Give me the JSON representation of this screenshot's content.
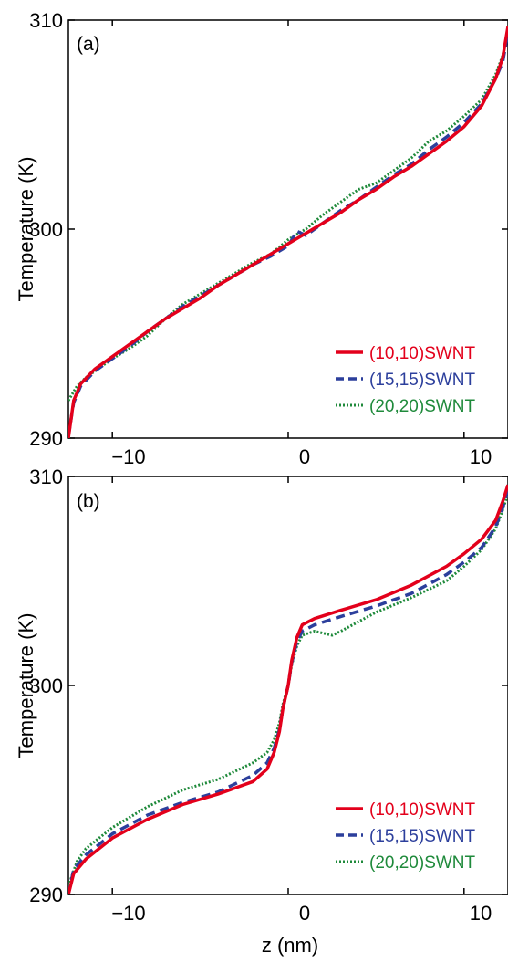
{
  "colors": {
    "series_10_10": "#e3001b",
    "series_15_15": "#2c3f9c",
    "series_20_20": "#1f8a3b",
    "axis": "#000000"
  },
  "chart_data": [
    {
      "type": "line",
      "panel_label": "(a)",
      "xlabel": "",
      "ylabel": "Temperature (K)",
      "xlim": [
        -12.5,
        12.5
      ],
      "ylim": [
        290,
        310
      ],
      "xticks": [
        "−10",
        "0",
        "10"
      ],
      "xtick_values": [
        -10,
        0,
        10
      ],
      "yticks": [
        "290",
        "300",
        "310"
      ],
      "ytick_values": [
        290,
        300,
        310
      ],
      "grid": false,
      "legend_position": "bottom-right",
      "series": [
        {
          "name": "(10,10)SWNT",
          "style": "solid",
          "color": "#e3001b",
          "points": [
            [
              -12.5,
              290.0
            ],
            [
              -12.2,
              291.8
            ],
            [
              -11.8,
              292.6
            ],
            [
              -11,
              293.3
            ],
            [
              -10,
              293.9
            ],
            [
              -9,
              294.5
            ],
            [
              -8,
              295.1
            ],
            [
              -7,
              295.7
            ],
            [
              -6,
              296.2
            ],
            [
              -5,
              296.7
            ],
            [
              -4,
              297.3
            ],
            [
              -3,
              297.8
            ],
            [
              -2,
              298.3
            ],
            [
              -1,
              298.8
            ],
            [
              0,
              299.3
            ],
            [
              1,
              299.8
            ],
            [
              2,
              300.3
            ],
            [
              3,
              300.8
            ],
            [
              4,
              301.4
            ],
            [
              5,
              301.9
            ],
            [
              6,
              302.5
            ],
            [
              7,
              303.0
            ],
            [
              8,
              303.6
            ],
            [
              9,
              304.2
            ],
            [
              10,
              304.9
            ],
            [
              11,
              305.9
            ],
            [
              11.8,
              307.2
            ],
            [
              12.2,
              308.2
            ],
            [
              12.5,
              309.7
            ]
          ]
        },
        {
          "name": "(15,15)SWNT",
          "style": "dashed",
          "color": "#2c3f9c",
          "points": [
            [
              -12.5,
              290.1
            ],
            [
              -12.2,
              291.7
            ],
            [
              -11.8,
              292.5
            ],
            [
              -11,
              293.2
            ],
            [
              -10,
              293.8
            ],
            [
              -9,
              294.4
            ],
            [
              -8,
              295.1
            ],
            [
              -7,
              295.7
            ],
            [
              -6,
              296.3
            ],
            [
              -5,
              296.8
            ],
            [
              -4,
              297.3
            ],
            [
              -3,
              297.8
            ],
            [
              -2,
              298.3
            ],
            [
              -1,
              298.7
            ],
            [
              0,
              299.2
            ],
            [
              0.5,
              299.9
            ],
            [
              1,
              299.7
            ],
            [
              2,
              300.3
            ],
            [
              3,
              300.9
            ],
            [
              4,
              301.4
            ],
            [
              5,
              302.0
            ],
            [
              6,
              302.6
            ],
            [
              7,
              303.1
            ],
            [
              8,
              303.8
            ],
            [
              9,
              304.4
            ],
            [
              10,
              305.1
            ],
            [
              11,
              306.0
            ],
            [
              11.8,
              307.2
            ],
            [
              12.2,
              308.0
            ],
            [
              12.5,
              309.4
            ]
          ]
        },
        {
          "name": "(20,20)SWNT",
          "style": "dotted",
          "color": "#1f8a3b",
          "points": [
            [
              -12.5,
              291.8
            ],
            [
              -12,
              292.5
            ],
            [
              -11.5,
              292.9
            ],
            [
              -11,
              293.2
            ],
            [
              -10,
              293.8
            ],
            [
              -9,
              294.3
            ],
            [
              -8,
              294.9
            ],
            [
              -7,
              295.7
            ],
            [
              -6,
              296.4
            ],
            [
              -5,
              296.9
            ],
            [
              -4,
              297.4
            ],
            [
              -3,
              297.9
            ],
            [
              -2,
              298.4
            ],
            [
              -1,
              298.8
            ],
            [
              0,
              299.5
            ],
            [
              1,
              300.0
            ],
            [
              2,
              300.7
            ],
            [
              3,
              301.3
            ],
            [
              4,
              301.9
            ],
            [
              5,
              302.2
            ],
            [
              6,
              302.8
            ],
            [
              7,
              303.4
            ],
            [
              8,
              304.2
            ],
            [
              9,
              304.7
            ],
            [
              10,
              305.4
            ],
            [
              11,
              306.2
            ],
            [
              11.8,
              307.4
            ],
            [
              12.2,
              308.3
            ],
            [
              12.5,
              309.5
            ]
          ]
        }
      ]
    },
    {
      "type": "line",
      "panel_label": "(b)",
      "xlabel": "z (nm)",
      "ylabel": "Temperature (K)",
      "xlim": [
        -12.5,
        12.5
      ],
      "ylim": [
        290,
        310
      ],
      "xticks": [
        "−10",
        "0",
        "10"
      ],
      "xtick_values": [
        -10,
        0,
        10
      ],
      "yticks": [
        "290",
        "300",
        "310"
      ],
      "ytick_values": [
        290,
        300,
        310
      ],
      "grid": false,
      "legend_position": "bottom-right",
      "series": [
        {
          "name": "(10,10)SWNT",
          "style": "solid",
          "color": "#e3001b",
          "points": [
            [
              -12.5,
              290.0
            ],
            [
              -12.2,
              291.0
            ],
            [
              -11.5,
              291.7
            ],
            [
              -10,
              292.7
            ],
            [
              -8,
              293.6
            ],
            [
              -6,
              294.3
            ],
            [
              -4,
              294.8
            ],
            [
              -2,
              295.4
            ],
            [
              -1.2,
              296.0
            ],
            [
              -0.8,
              296.8
            ],
            [
              -0.5,
              297.8
            ],
            [
              -0.3,
              298.9
            ],
            [
              0,
              300.0
            ],
            [
              0.2,
              301.2
            ],
            [
              0.5,
              302.3
            ],
            [
              0.8,
              302.9
            ],
            [
              1.5,
              303.2
            ],
            [
              3,
              303.6
            ],
            [
              5,
              304.1
            ],
            [
              7,
              304.8
            ],
            [
              9,
              305.7
            ],
            [
              10,
              306.3
            ],
            [
              11,
              307.0
            ],
            [
              11.8,
              307.9
            ],
            [
              12.2,
              308.8
            ],
            [
              12.5,
              309.6
            ]
          ]
        },
        {
          "name": "(15,15)SWNT",
          "style": "dashed",
          "color": "#2c3f9c",
          "points": [
            [
              -12.5,
              290.0
            ],
            [
              -12.2,
              291.2
            ],
            [
              -11.5,
              291.9
            ],
            [
              -10,
              292.9
            ],
            [
              -8,
              293.8
            ],
            [
              -6,
              294.4
            ],
            [
              -4,
              294.9
            ],
            [
              -2,
              295.7
            ],
            [
              -1.2,
              296.3
            ],
            [
              -0.8,
              297.0
            ],
            [
              -0.5,
              297.9
            ],
            [
              -0.3,
              298.9
            ],
            [
              0,
              300.0
            ],
            [
              0.2,
              301.1
            ],
            [
              0.5,
              302.1
            ],
            [
              0.8,
              302.6
            ],
            [
              1.5,
              302.9
            ],
            [
              3,
              303.3
            ],
            [
              5,
              303.8
            ],
            [
              7,
              304.4
            ],
            [
              9,
              305.3
            ],
            [
              10,
              305.9
            ],
            [
              11,
              306.6
            ],
            [
              11.8,
              307.6
            ],
            [
              12.2,
              308.5
            ],
            [
              12.5,
              309.4
            ]
          ]
        },
        {
          "name": "(20,20)SWNT",
          "style": "dotted",
          "color": "#1f8a3b",
          "points": [
            [
              -12.5,
              290.4
            ],
            [
              -12,
              291.6
            ],
            [
              -11.5,
              292.2
            ],
            [
              -10,
              293.2
            ],
            [
              -8,
              294.2
            ],
            [
              -6,
              295.0
            ],
            [
              -4,
              295.5
            ],
            [
              -2,
              296.3
            ],
            [
              -1.2,
              296.8
            ],
            [
              -0.8,
              297.4
            ],
            [
              -0.5,
              298.2
            ],
            [
              -0.3,
              299.1
            ],
            [
              0,
              300.0
            ],
            [
              0.2,
              301.0
            ],
            [
              0.5,
              301.9
            ],
            [
              0.8,
              302.4
            ],
            [
              1.5,
              302.6
            ],
            [
              2.5,
              302.4
            ],
            [
              3,
              302.6
            ],
            [
              5,
              303.5
            ],
            [
              7,
              304.2
            ],
            [
              9,
              305.0
            ],
            [
              10,
              305.7
            ],
            [
              11,
              306.5
            ],
            [
              11.8,
              307.5
            ],
            [
              12.2,
              308.4
            ],
            [
              12.5,
              309.2
            ]
          ]
        }
      ]
    }
  ]
}
